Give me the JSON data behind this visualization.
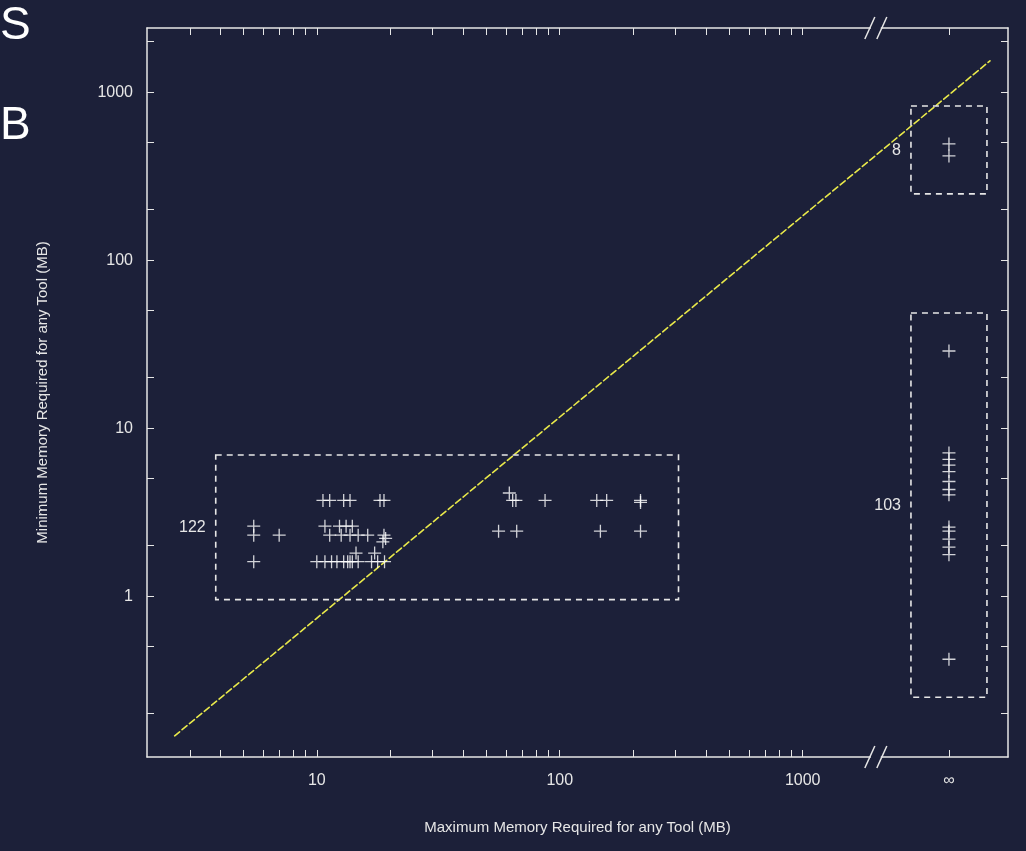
{
  "chart_data": {
    "type": "scatter",
    "xlabel": "Maximum Memory Required for any Tool (MB)",
    "ylabel": "Minimum Memory Required for any Tool (MB)",
    "log": "xy",
    "marker": "cross",
    "xlim": [
      2,
      7000
    ],
    "ylim": [
      0.11,
      2400
    ],
    "xticks": [
      {
        "value": 3,
        "label": null
      },
      {
        "value": 4,
        "label": null
      },
      {
        "value": 5,
        "label": null
      },
      {
        "value": 6,
        "label": null
      },
      {
        "value": 7,
        "label": null
      },
      {
        "value": 8,
        "label": null
      },
      {
        "value": 9,
        "label": null
      },
      10,
      {
        "value": 20,
        "label": null
      },
      {
        "value": 30,
        "label": null
      },
      {
        "value": 40,
        "label": null
      },
      {
        "value": 50,
        "label": null
      },
      {
        "value": 60,
        "label": null
      },
      {
        "value": 70,
        "label": null
      },
      {
        "value": 80,
        "label": null
      },
      {
        "value": 90,
        "label": null
      },
      100,
      {
        "value": 200,
        "label": null
      },
      {
        "value": 300,
        "label": null
      },
      {
        "value": 400,
        "label": null
      },
      {
        "value": 500,
        "label": null
      },
      {
        "value": 600,
        "label": null
      },
      {
        "value": 700,
        "label": null
      },
      {
        "value": 800,
        "label": null
      },
      {
        "value": 900,
        "label": null
      },
      1000,
      {
        "value": 4000,
        "label": "∞"
      }
    ],
    "yticks": [
      {
        "value": 0.2,
        "label": null
      },
      {
        "value": 0.5,
        "label": null
      },
      1,
      {
        "value": 2,
        "label": null
      },
      {
        "value": 5,
        "label": null
      },
      10,
      {
        "value": 20,
        "label": null
      },
      {
        "value": 50,
        "label": null
      },
      100,
      {
        "value": 200,
        "label": null
      },
      {
        "value": 500,
        "label": null
      },
      1000,
      {
        "value": 2000,
        "label": null
      }
    ],
    "annotations": [
      "S",
      "B",
      "122",
      "103",
      "8"
    ],
    "series": [
      {
        "color": "#ffffff",
        "x": [
          5.5,
          5.5,
          5.5,
          7,
          10.6,
          11.3,
          12.9,
          13.7,
          18.2,
          18.9,
          10.8,
          12.4,
          13.2,
          14.0,
          11.3,
          12.6,
          13.7,
          14.8,
          16.2,
          18.9,
          18.7,
          19.2,
          14.5,
          17.3,
          10.0,
          10.8,
          11.5,
          12.1,
          12.9,
          13.4,
          13.7,
          14.0,
          14.8,
          16.8,
          17.8,
          19.0,
          62,
          64,
          66,
          87,
          142,
          156,
          215,
          215,
          56,
          66.5,
          147,
          215,
          4000,
          4000,
          4000,
          4000,
          4000,
          4000,
          4000,
          4000,
          4000,
          4000,
          4000,
          4000,
          4000,
          4000,
          4000,
          4000
        ],
        "values": [
          2.6,
          2.3,
          1.6,
          2.3,
          3.7,
          3.7,
          3.7,
          3.7,
          3.7,
          3.7,
          2.6,
          2.6,
          2.6,
          2.6,
          2.3,
          2.3,
          2.3,
          2.3,
          2.3,
          2.3,
          2.1,
          2.2,
          1.8,
          1.8,
          1.6,
          1.6,
          1.6,
          1.6,
          1.6,
          1.6,
          1.6,
          1.6,
          1.6,
          1.6,
          1.6,
          1.6,
          4.1,
          3.7,
          3.7,
          3.7,
          3.7,
          3.7,
          3.7,
          3.6,
          2.43,
          2.43,
          2.43,
          2.43,
          490,
          416,
          28.7,
          7.1,
          6.5,
          6.0,
          5.5,
          4.8,
          4.3,
          4.0,
          2.57,
          2.43,
          2.18,
          1.95,
          1.76,
          0.42
        ]
      },
      {
        "type": "line",
        "color": "#e8e84a",
        "marker": "none",
        "line_style": "dashed",
        "x": [
          2.6,
          5900
        ],
        "values": [
          0.147,
          1530
        ]
      }
    ]
  }
}
